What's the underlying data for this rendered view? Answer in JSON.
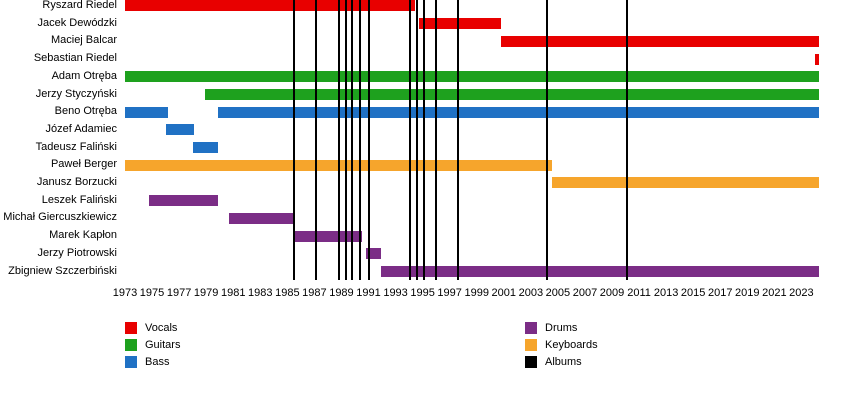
{
  "chart_data": {
    "type": "bar",
    "subtype": "band-membership-gantt-timeline",
    "title": "",
    "xlabel": "",
    "ylabel": "",
    "grid": false,
    "legend_position": "bottom-two-columns",
    "x_axis": {
      "start": 1973,
      "end": 2024.3,
      "ticks": [
        1973,
        1975,
        1977,
        1979,
        1981,
        1983,
        1985,
        1987,
        1989,
        1991,
        1993,
        1995,
        1997,
        1999,
        2001,
        2003,
        2005,
        2007,
        2009,
        2011,
        2013,
        2015,
        2017,
        2019,
        2021,
        2023
      ]
    },
    "colors": {
      "vocals": "#e80000",
      "guitars": "#1ea11e",
      "bass": "#2071c4",
      "drums": "#7b2d86",
      "keyboards": "#f6a52c",
      "albums": "#000000"
    },
    "members": [
      {
        "name": "Ryszard Riedel",
        "instrument": "vocals",
        "segments": [
          [
            1973,
            1994.4
          ]
        ]
      },
      {
        "name": "Jacek Dewódzki",
        "instrument": "vocals",
        "segments": [
          [
            1994.7,
            2000.8
          ]
        ]
      },
      {
        "name": "Maciej Balcar",
        "instrument": "vocals",
        "segments": [
          [
            2000.8,
            2024.3
          ]
        ]
      },
      {
        "name": "Sebastian Riedel",
        "instrument": "vocals",
        "segments": [
          [
            2024.0,
            2024.3
          ]
        ]
      },
      {
        "name": "Adam Otręba",
        "instrument": "guitars",
        "segments": [
          [
            1973,
            2024.3
          ]
        ]
      },
      {
        "name": "Jerzy Styczyński",
        "instrument": "guitars",
        "segments": [
          [
            1978.9,
            2024.3
          ]
        ]
      },
      {
        "name": "Beno Otręba",
        "instrument": "bass",
        "segments": [
          [
            1973,
            1976.2
          ],
          [
            1979.9,
            2024.3
          ]
        ]
      },
      {
        "name": "Józef Adamiec",
        "instrument": "bass",
        "segments": [
          [
            1976.0,
            1978.1
          ]
        ]
      },
      {
        "name": "Tadeusz Faliński",
        "instrument": "bass",
        "segments": [
          [
            1978.0,
            1979.9
          ]
        ]
      },
      {
        "name": "Paweł Berger",
        "instrument": "keyboards",
        "segments": [
          [
            1973,
            2004.6
          ]
        ]
      },
      {
        "name": "Janusz Borzucki",
        "instrument": "keyboards",
        "segments": [
          [
            2004.6,
            2024.3
          ]
        ]
      },
      {
        "name": "Leszek Faliński",
        "instrument": "drums",
        "segments": [
          [
            1974.8,
            1979.9
          ]
        ]
      },
      {
        "name": "Michał Giercuszkiewicz",
        "instrument": "drums",
        "segments": [
          [
            1980.7,
            1985.6
          ]
        ]
      },
      {
        "name": "Marek Kapłon",
        "instrument": "drums",
        "segments": [
          [
            1985.6,
            1990.5
          ]
        ]
      },
      {
        "name": "Jerzy Piotrowski",
        "instrument": "drums",
        "segments": [
          [
            1990.8,
            1991.9
          ]
        ]
      },
      {
        "name": "Zbigniew Szczerbiński",
        "instrument": "drums",
        "segments": [
          [
            1991.9,
            2024.3
          ]
        ]
      }
    ],
    "album_release_lines": [
      1985.5,
      1987.1,
      1988.8,
      1989.3,
      1989.8,
      1990.4,
      1991.0,
      1994.1,
      1994.6,
      1995.1,
      1996.0,
      1997.6,
      2004.2,
      2010.1
    ],
    "legend": {
      "columns": [
        [
          {
            "label": "Vocals",
            "key": "vocals"
          },
          {
            "label": "Guitars",
            "key": "guitars"
          },
          {
            "label": "Bass",
            "key": "bass"
          }
        ],
        [
          {
            "label": "Drums",
            "key": "drums"
          },
          {
            "label": "Keyboards",
            "key": "keyboards"
          },
          {
            "label": "Albums",
            "key": "albums"
          }
        ]
      ]
    }
  }
}
